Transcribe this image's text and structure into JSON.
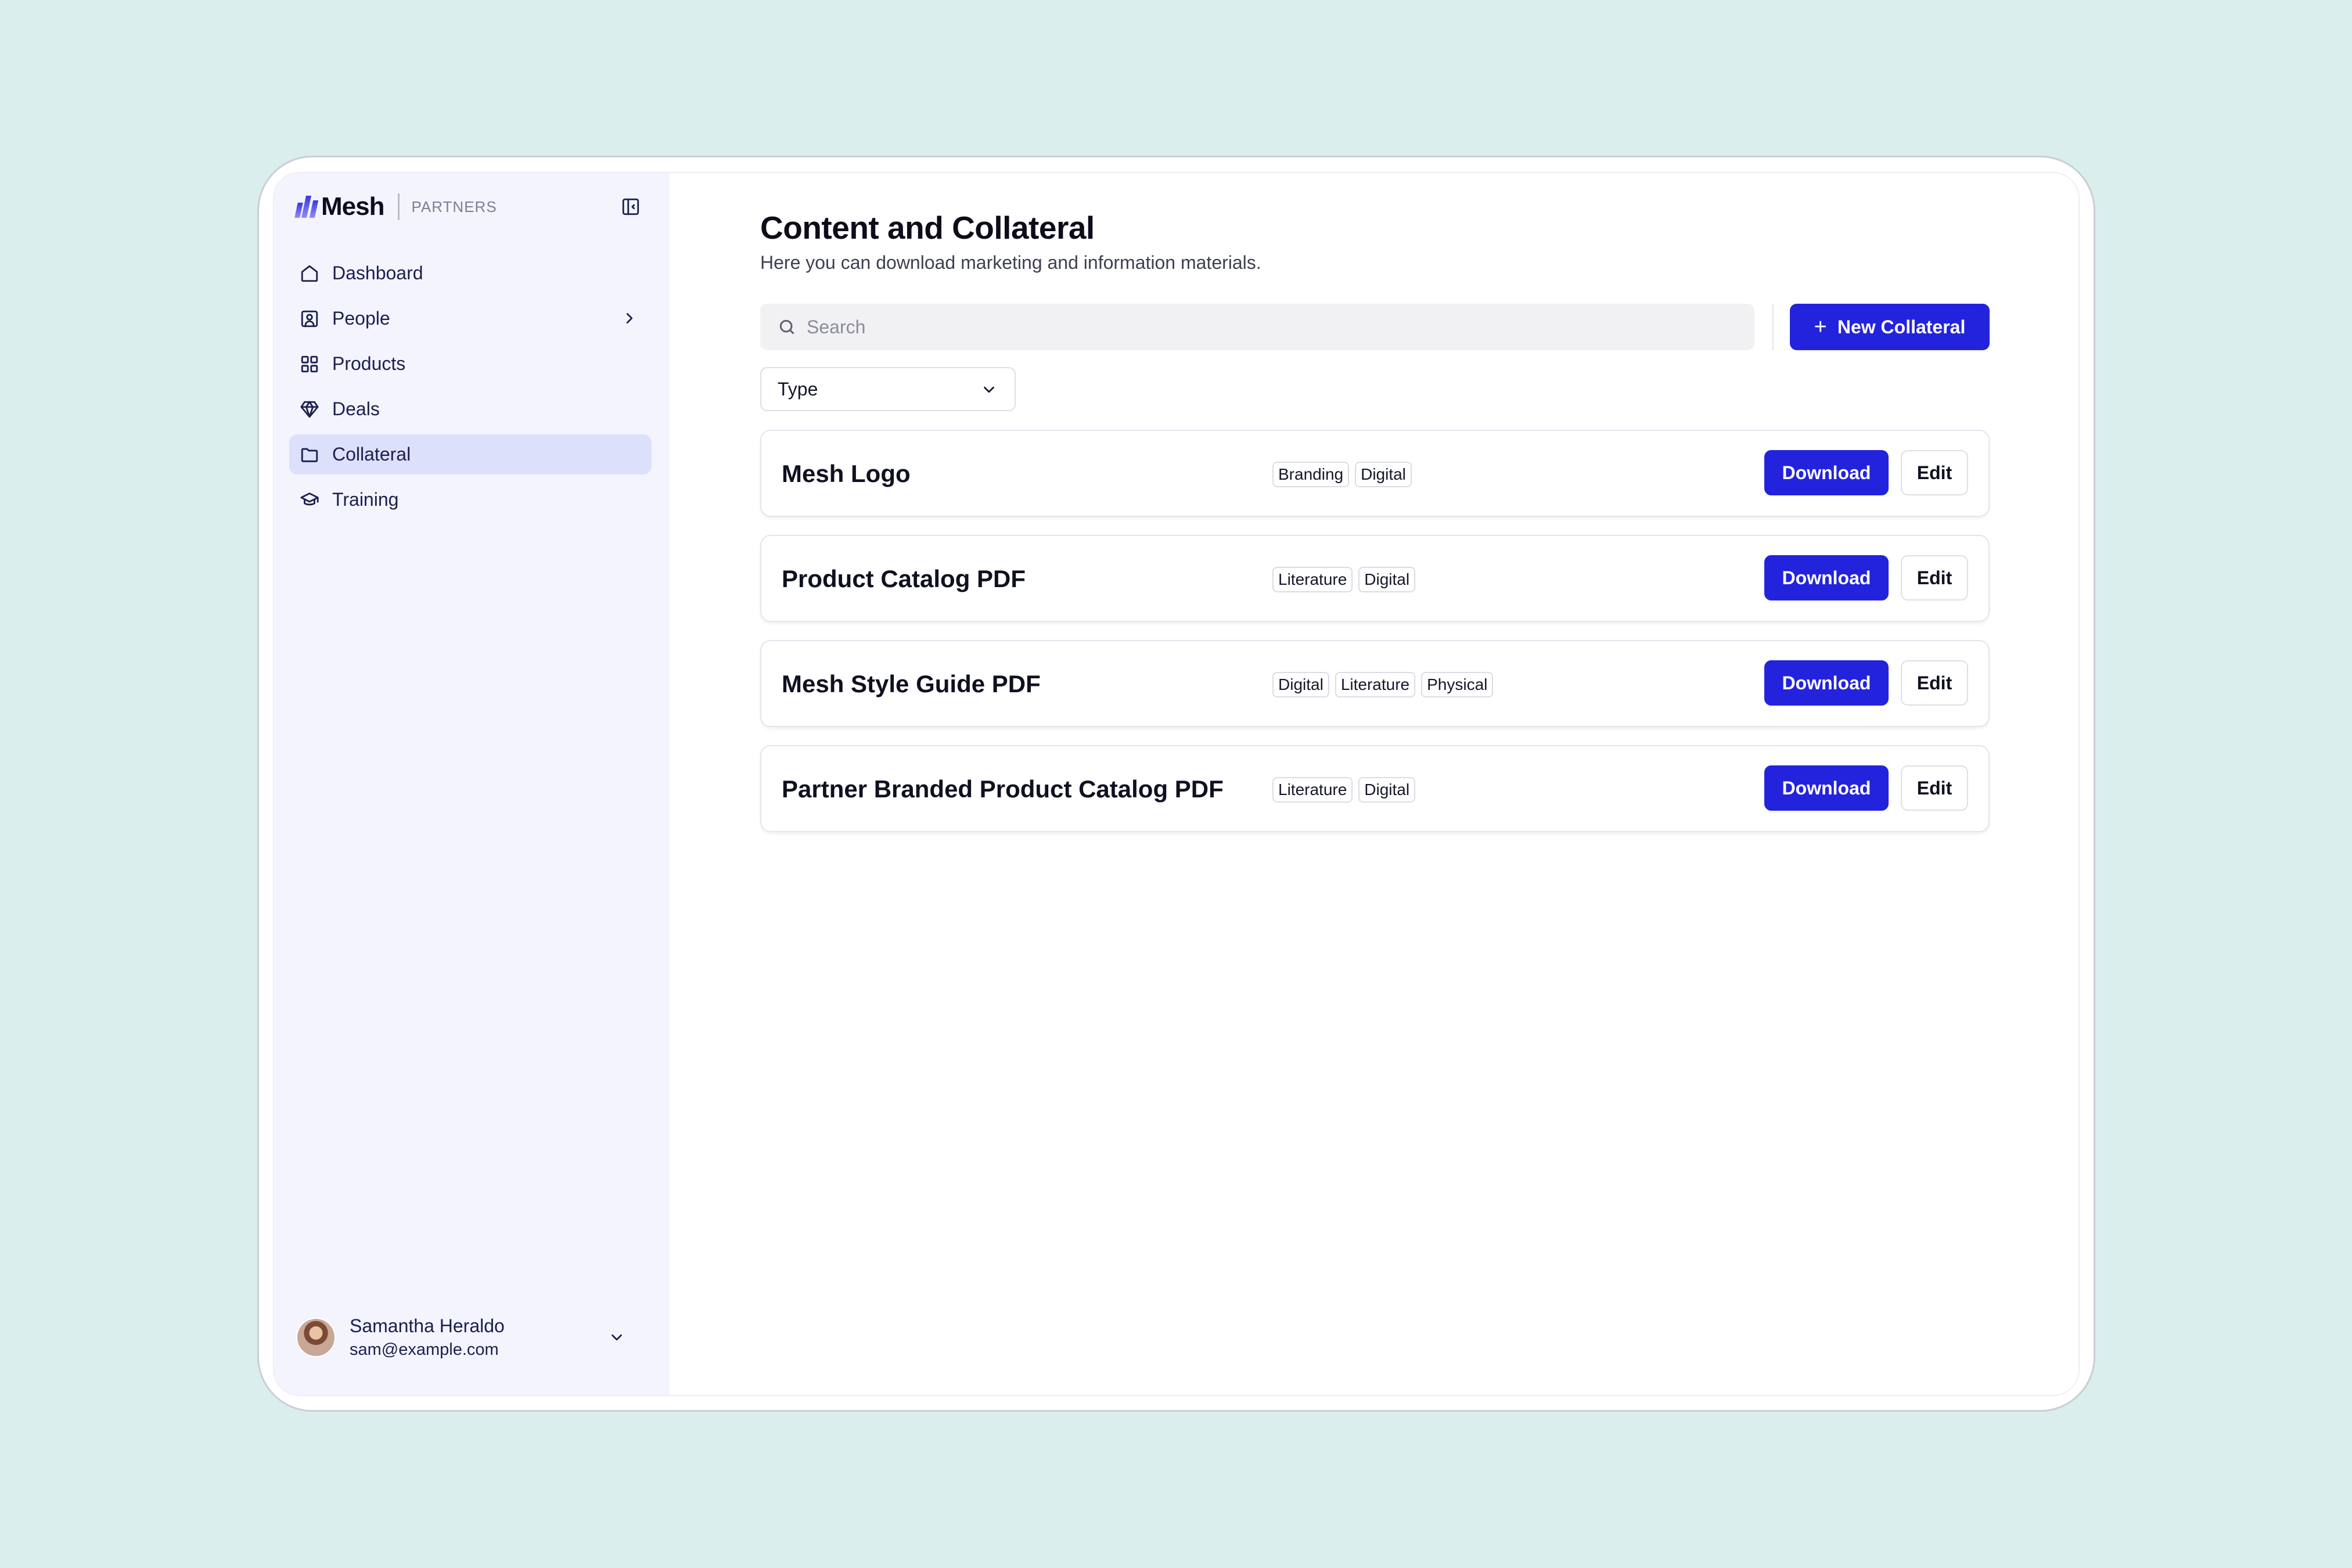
{
  "brand": {
    "name": "Mesh",
    "sub": "PARTNERS"
  },
  "sidebar": {
    "items": [
      {
        "label": "Dashboard",
        "icon": "home-icon"
      },
      {
        "label": "People",
        "icon": "user-square-icon"
      },
      {
        "label": "Products",
        "icon": "grid-icon"
      },
      {
        "label": "Deals",
        "icon": "gem-icon"
      },
      {
        "label": "Collateral",
        "icon": "folder-icon",
        "active": true
      },
      {
        "label": "Training",
        "icon": "graduation-cap-icon"
      }
    ]
  },
  "user": {
    "name": "Samantha Heraldo",
    "email": "sam@example.com"
  },
  "page": {
    "title": "Content and Collateral",
    "subtitle": "Here you can download marketing and information materials."
  },
  "search": {
    "placeholder": "Search",
    "value": ""
  },
  "toolbar": {
    "new_label": "New Collateral",
    "plus": "+"
  },
  "filter": {
    "type_label": "Type"
  },
  "collateral": [
    {
      "title": "Mesh Logo",
      "tags": [
        "Branding",
        "Digital"
      ],
      "download_label": "Download",
      "edit_label": "Edit"
    },
    {
      "title": "Product Catalog PDF",
      "tags": [
        "Literature",
        "Digital"
      ],
      "download_label": "Download",
      "edit_label": "Edit"
    },
    {
      "title": "Mesh Style Guide PDF",
      "tags": [
        "Digital",
        "Literature",
        "Physical"
      ],
      "download_label": "Download",
      "edit_label": "Edit"
    },
    {
      "title": "Partner Branded Product Catalog PDF",
      "tags": [
        "Literature",
        "Digital"
      ],
      "download_label": "Download",
      "edit_label": "Edit"
    }
  ],
  "colors": {
    "accent": "#2323de",
    "sidebar_bg": "#f3f4fe",
    "active_bg": "#dde0fb",
    "page_bg": "#daeeeb"
  }
}
